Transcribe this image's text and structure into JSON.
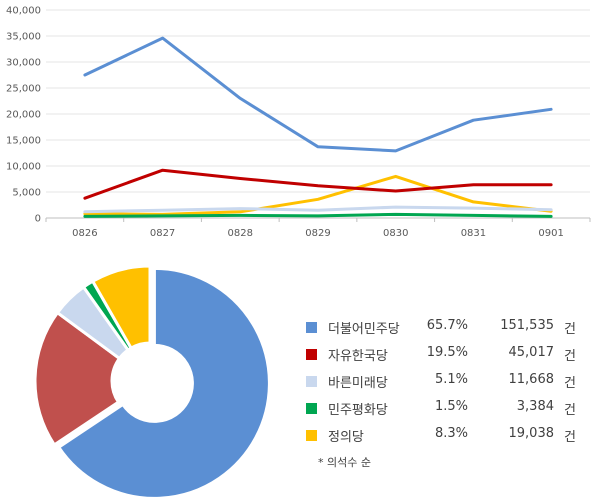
{
  "chart_data": [
    {
      "type": "line",
      "x": [
        "0826",
        "0827",
        "0828",
        "0829",
        "0830",
        "0831",
        "0901"
      ],
      "y_ticks": [
        "0",
        "5,000",
        "10,000",
        "15,000",
        "20,000",
        "25,000",
        "30,000",
        "35,000",
        "40,000"
      ],
      "ylim": [
        0,
        40000
      ],
      "grid": true,
      "series": [
        {
          "color": "#5B8FD3",
          "values": [
            27500,
            34600,
            23000,
            13700,
            12900,
            18800,
            20900
          ]
        },
        {
          "color": "#C00000",
          "values": [
            3800,
            9200,
            7600,
            6200,
            5200,
            6400,
            6400
          ]
        },
        {
          "color": "#C9D8EE",
          "values": [
            1200,
            1500,
            1800,
            1500,
            2100,
            1900,
            1600
          ]
        },
        {
          "color": "#00A651",
          "values": [
            300,
            400,
            500,
            400,
            700,
            500,
            300
          ]
        },
        {
          "color": "#FFC000",
          "values": [
            800,
            700,
            1200,
            3600,
            8000,
            3100,
            1300
          ]
        }
      ]
    },
    {
      "type": "pie",
      "donut": true,
      "slices": [
        {
          "label": "더불어민주당",
          "percent": "65.7%",
          "count": "151,535",
          "unit": "건",
          "value": 65.7,
          "color": "#5B8FD3"
        },
        {
          "label": "자유한국당",
          "percent": "19.5%",
          "count": "45,017",
          "unit": "건",
          "value": 19.5,
          "color": "#C0504D"
        },
        {
          "label": "바른미래당",
          "percent": "5.1%",
          "count": "11,668",
          "unit": "건",
          "value": 5.1,
          "color": "#C9D8EE"
        },
        {
          "label": "민주평화당",
          "percent": "1.5%",
          "count": "3,384",
          "unit": "건",
          "value": 1.5,
          "color": "#00A651"
        },
        {
          "label": "정의당",
          "percent": "8.3%",
          "count": "19,038",
          "unit": "건",
          "value": 8.3,
          "color": "#FFC000"
        }
      ],
      "note": "* 의석수 순"
    }
  ]
}
